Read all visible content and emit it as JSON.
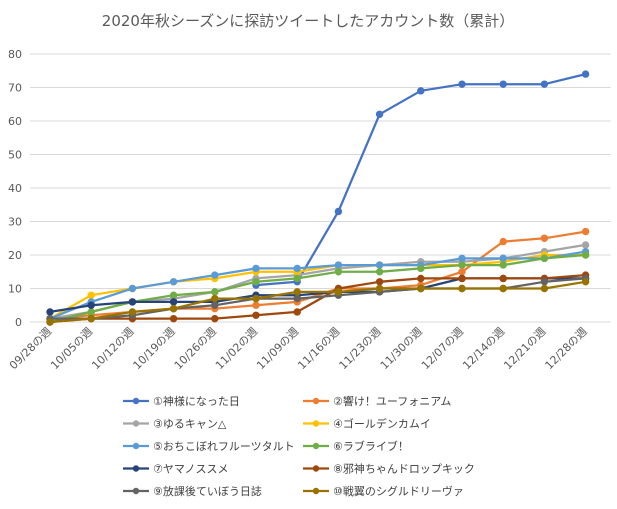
{
  "chart_data": {
    "type": "line",
    "title": "2020年秋シーズンに探訪ツイートしたアカウント数（累計）",
    "xlabel": "",
    "ylabel": "",
    "ylim": [
      0,
      80
    ],
    "yticks": [
      0,
      10,
      20,
      30,
      40,
      50,
      60,
      70,
      80
    ],
    "grid": true,
    "legend_position": "bottom",
    "categories": [
      "09/28の週",
      "10/05の週",
      "10/12の週",
      "10/19の週",
      "10/26の週",
      "11/02の週",
      "11/09の週",
      "11/16の週",
      "11/23の週",
      "11/30の週",
      "12/07の週",
      "12/14の週",
      "12/21の週",
      "12/28の週"
    ],
    "series": [
      {
        "name": "①神様になった日",
        "color": "#4472c4",
        "values": [
          null,
          null,
          null,
          null,
          null,
          11,
          12,
          33,
          62,
          69,
          71,
          71,
          71,
          74
        ]
      },
      {
        "name": "②響け！ユーフォニアム",
        "color": "#ed7d31",
        "values": [
          1,
          2,
          3,
          4,
          4,
          5,
          6,
          10,
          10,
          11,
          15,
          24,
          25,
          27
        ]
      },
      {
        "name": "③ゆるキャン△",
        "color": "#a5a5a5",
        "values": [
          1,
          3,
          6,
          7,
          9,
          13,
          14,
          16,
          17,
          18,
          18,
          19,
          21,
          23
        ]
      },
      {
        "name": "④ゴールデンカムイ",
        "color": "#ffc000",
        "values": [
          1,
          8,
          10,
          12,
          13,
          15,
          15,
          17,
          17,
          17,
          17,
          18,
          20,
          20
        ]
      },
      {
        "name": "⑤おちこぼれフルーツタルト",
        "color": "#5b9bd5",
        "values": [
          1,
          6,
          10,
          12,
          14,
          16,
          16,
          17,
          17,
          17,
          19,
          19,
          19,
          21
        ]
      },
      {
        "name": "⑥ラブライブ！",
        "color": "#70ad47",
        "values": [
          0,
          3,
          6,
          8,
          9,
          12,
          13,
          15,
          15,
          16,
          17,
          17,
          19,
          20
        ]
      },
      {
        "name": "⑦ヤマノススメ",
        "color": "#264478",
        "values": [
          3,
          5,
          6,
          6,
          6,
          8,
          8,
          9,
          9,
          10,
          13,
          13,
          13,
          13
        ]
      },
      {
        "name": "⑧邪神ちゃんドロップキック",
        "color": "#9e480e",
        "values": [
          0,
          1,
          1,
          1,
          1,
          2,
          3,
          10,
          12,
          13,
          13,
          13,
          13,
          14
        ]
      },
      {
        "name": "⑨放課後ていぼう日誌",
        "color": "#636363",
        "values": [
          1,
          1,
          2,
          4,
          5,
          7,
          7,
          8,
          9,
          10,
          10,
          10,
          12,
          13
        ]
      },
      {
        "name": "⑩戦翼のシグルドリーヴァ",
        "color": "#997300",
        "values": [
          0,
          1,
          3,
          4,
          7,
          7,
          9,
          9,
          10,
          10,
          10,
          10,
          10,
          12
        ]
      }
    ]
  }
}
